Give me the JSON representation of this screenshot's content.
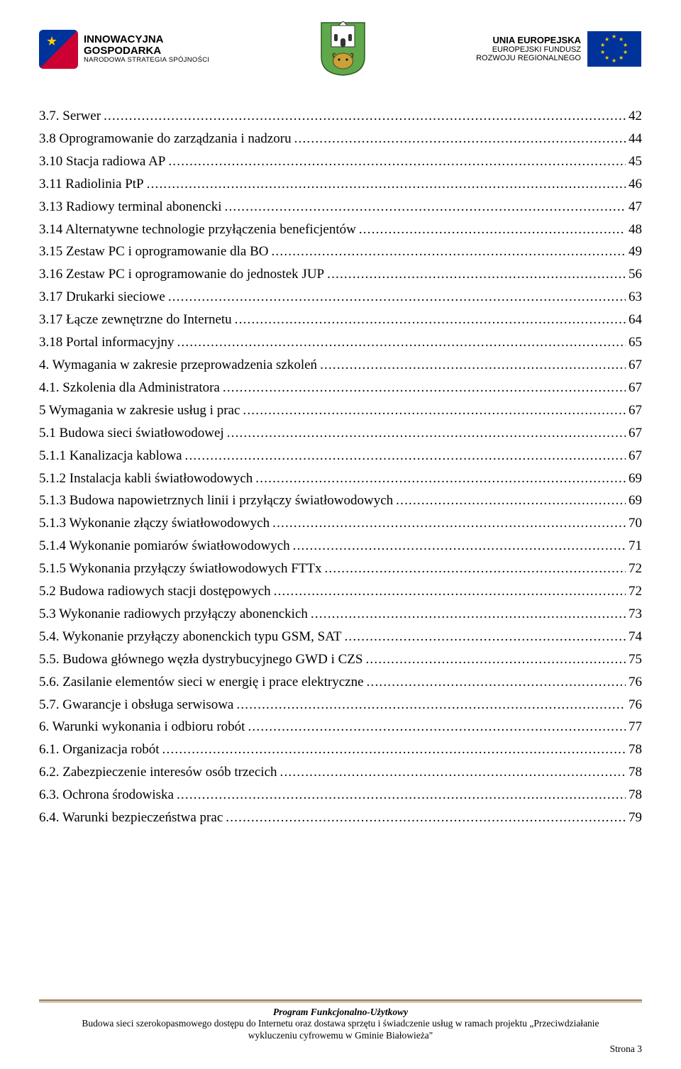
{
  "header": {
    "left": {
      "line1": "INNOWACYJNA",
      "line2": "GOSPODARKA",
      "line3": "NARODOWA STRATEGIA SPÓJNOŚCI"
    },
    "right": {
      "line1": "UNIA EUROPEJSKA",
      "line2": "EUROPEJSKI FUNDUSZ",
      "line3": "ROZWOJU REGIONALNEGO"
    }
  },
  "toc": [
    {
      "label": "3.7. Serwer",
      "page": "42"
    },
    {
      "label": "3.8 Oprogramowanie do zarządzania i nadzoru",
      "page": "44"
    },
    {
      "label": "3.10 Stacja radiowa AP",
      "page": "45"
    },
    {
      "label": "3.11 Radiolinia PtP",
      "page": "46"
    },
    {
      "label": "3.13 Radiowy terminal abonencki",
      "page": "47"
    },
    {
      "label": "3.14 Alternatywne technologie przyłączenia beneficjentów",
      "page": "48"
    },
    {
      "label": "3.15 Zestaw PC i oprogramowanie dla BO",
      "page": "49"
    },
    {
      "label": "3.16 Zestaw PC i oprogramowanie do jednostek JUP",
      "page": "56"
    },
    {
      "label": "3.17 Drukarki sieciowe",
      "page": "63"
    },
    {
      "label": "3.17 Łącze zewnętrzne do Internetu",
      "page": "64"
    },
    {
      "label": "3.18 Portal informacyjny",
      "page": "65"
    },
    {
      "label": "4. Wymagania w zakresie przeprowadzenia szkoleń",
      "page": "67"
    },
    {
      "label": "4.1. Szkolenia dla Administratora",
      "page": "67"
    },
    {
      "label": "5 Wymagania w zakresie usług i prac",
      "page": "67"
    },
    {
      "label": "5.1 Budowa sieci światłowodowej",
      "page": "67"
    },
    {
      "label": "5.1.1 Kanalizacja kablowa",
      "page": "67"
    },
    {
      "label": "5.1.2 Instalacja kabli światłowodowych",
      "page": "69"
    },
    {
      "label": "5.1.3 Budowa napowietrznych linii i przyłączy światłowodowych",
      "page": "69"
    },
    {
      "label": "5.1.3 Wykonanie złączy światłowodowych",
      "page": "70"
    },
    {
      "label": "5.1.4 Wykonanie pomiarów światłowodowych",
      "page": "71"
    },
    {
      "label": "5.1.5 Wykonania przyłączy światłowodowych FTTx",
      "page": "72"
    },
    {
      "label": "5.2 Budowa radiowych stacji dostępowych",
      "page": "72"
    },
    {
      "label": "5.3 Wykonanie radiowych przyłączy abonenckich",
      "page": "73"
    },
    {
      "label": "5.4. Wykonanie przyłączy abonenckich typu GSM, SAT",
      "page": "74"
    },
    {
      "label": "5.5. Budowa głównego węzła dystrybucyjnego GWD i CZS",
      "page": "75"
    },
    {
      "label": "5.6. Zasilanie elementów sieci w energię i prace elektryczne",
      "page": "76"
    },
    {
      "label": "5.7. Gwarancje i obsługa serwisowa",
      "page": "76"
    },
    {
      "label": "6. Warunki wykonania i odbioru robót",
      "page": "77"
    },
    {
      "label": "6.1. Organizacja robót",
      "page": "78"
    },
    {
      "label": "6.2. Zabezpieczenie interesów osób trzecich",
      "page": "78"
    },
    {
      "label": "6.3. Ochrona środowiska",
      "page": "78"
    },
    {
      "label": "6.4. Warunki bezpieczeństwa prac",
      "page": "79"
    }
  ],
  "footer": {
    "title": "Program Funkcjonalno-Użytkowy",
    "desc1": "Budowa sieci szerokopasmowego dostępu do Internetu oraz dostawa sprzętu i świadczenie usług w ramach projektu „Przeciwdziałanie",
    "desc2": "wykluczeniu cyfrowemu w Gminie Białowieża\"",
    "pageno": "Strona 3"
  }
}
